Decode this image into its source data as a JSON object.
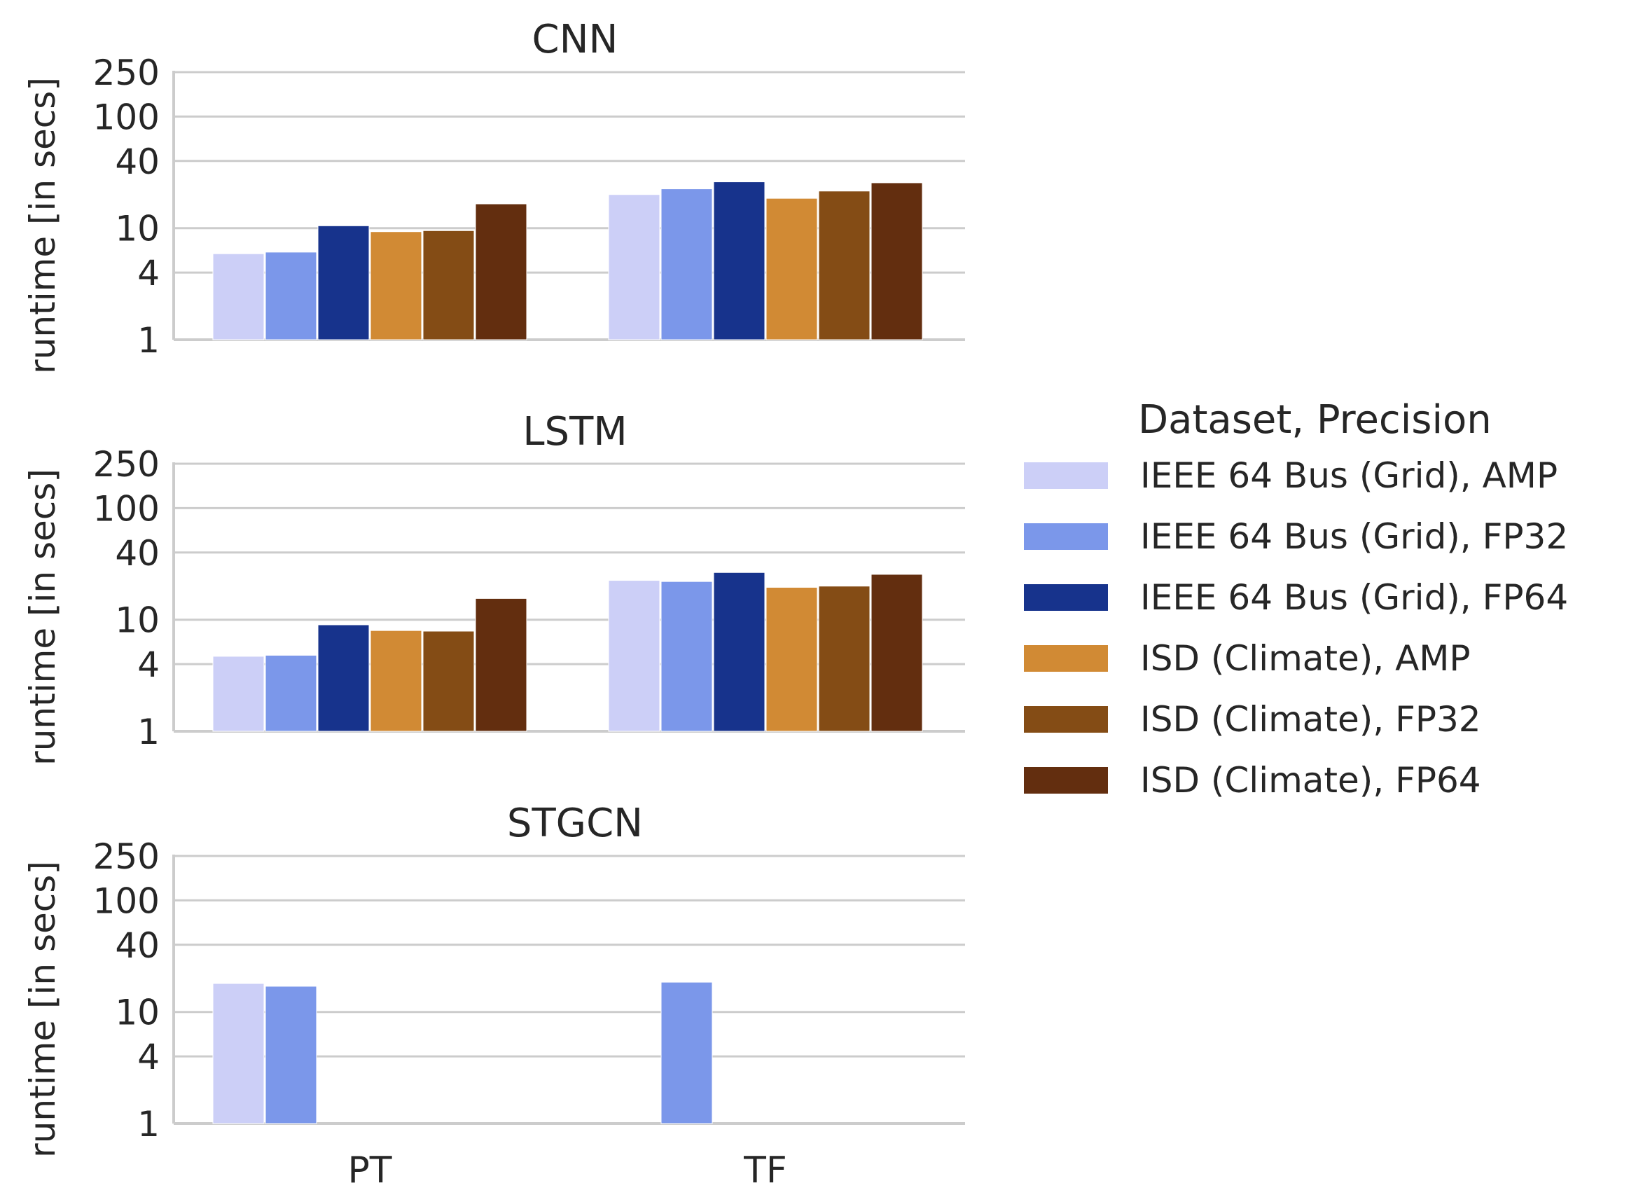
{
  "chart_data": {
    "type": "bar",
    "yscale": "log",
    "ylim": [
      1,
      250
    ],
    "yticks": [
      1,
      4,
      10,
      40,
      100,
      250
    ],
    "ytick_labels": [
      "1",
      "4",
      "10",
      "40",
      "100",
      "250"
    ],
    "ylabel": "runtime [in secs]",
    "xlabel": "",
    "categories": [
      "PT",
      "TF"
    ],
    "grid": true,
    "legend": {
      "title": "Dataset, Precision",
      "placement": "right",
      "entries": [
        {
          "label": "IEEE 64 Bus (Grid), AMP",
          "color": "#cccff7"
        },
        {
          "label": "IEEE 64 Bus (Grid), FP32",
          "color": "#7b97ea"
        },
        {
          "label": "IEEE 64 Bus (Grid), FP64",
          "color": "#17338c"
        },
        {
          "label": "ISD (Climate), AMP",
          "color": "#d18a34"
        },
        {
          "label": "ISD (Climate), FP32",
          "color": "#844c15"
        },
        {
          "label": "ISD (Climate), FP64",
          "color": "#632e0f"
        }
      ]
    },
    "panels": [
      {
        "title": "CNN",
        "series": [
          {
            "name": "IEEE 64 Bus (Grid), AMP",
            "values": [
              5.9,
              20
            ]
          },
          {
            "name": "IEEE 64 Bus (Grid), FP32",
            "values": [
              6.1,
              22.5
            ]
          },
          {
            "name": "IEEE 64 Bus (Grid), FP64",
            "values": [
              10.5,
              26
            ]
          },
          {
            "name": "ISD (Climate), AMP",
            "values": [
              9.3,
              18.5
            ]
          },
          {
            "name": "ISD (Climate), FP32",
            "values": [
              9.5,
              21.5
            ]
          },
          {
            "name": "ISD (Climate), FP64",
            "values": [
              16.5,
              25.5
            ]
          }
        ]
      },
      {
        "title": "LSTM",
        "series": [
          {
            "name": "IEEE 64 Bus (Grid), AMP",
            "values": [
              4.7,
              22.5
            ]
          },
          {
            "name": "IEEE 64 Bus (Grid), FP32",
            "values": [
              4.8,
              22
            ]
          },
          {
            "name": "IEEE 64 Bus (Grid), FP64",
            "values": [
              9.0,
              26.5
            ]
          },
          {
            "name": "ISD (Climate), AMP",
            "values": [
              8.0,
              19.5
            ]
          },
          {
            "name": "ISD (Climate), FP32",
            "values": [
              7.9,
              20
            ]
          },
          {
            "name": "ISD (Climate), FP64",
            "values": [
              15.5,
              25.5
            ]
          }
        ]
      },
      {
        "title": "STGCN",
        "series": [
          {
            "name": "IEEE 64 Bus (Grid), AMP",
            "values": [
              18,
              null
            ]
          },
          {
            "name": "IEEE 64 Bus (Grid), FP32",
            "values": [
              17,
              18.5
            ]
          },
          {
            "name": "IEEE 64 Bus (Grid), FP64",
            "values": [
              null,
              null
            ]
          },
          {
            "name": "ISD (Climate), AMP",
            "values": [
              null,
              null
            ]
          },
          {
            "name": "ISD (Climate), FP32",
            "values": [
              null,
              null
            ]
          },
          {
            "name": "ISD (Climate), FP64",
            "values": [
              null,
              null
            ]
          }
        ]
      }
    ]
  }
}
